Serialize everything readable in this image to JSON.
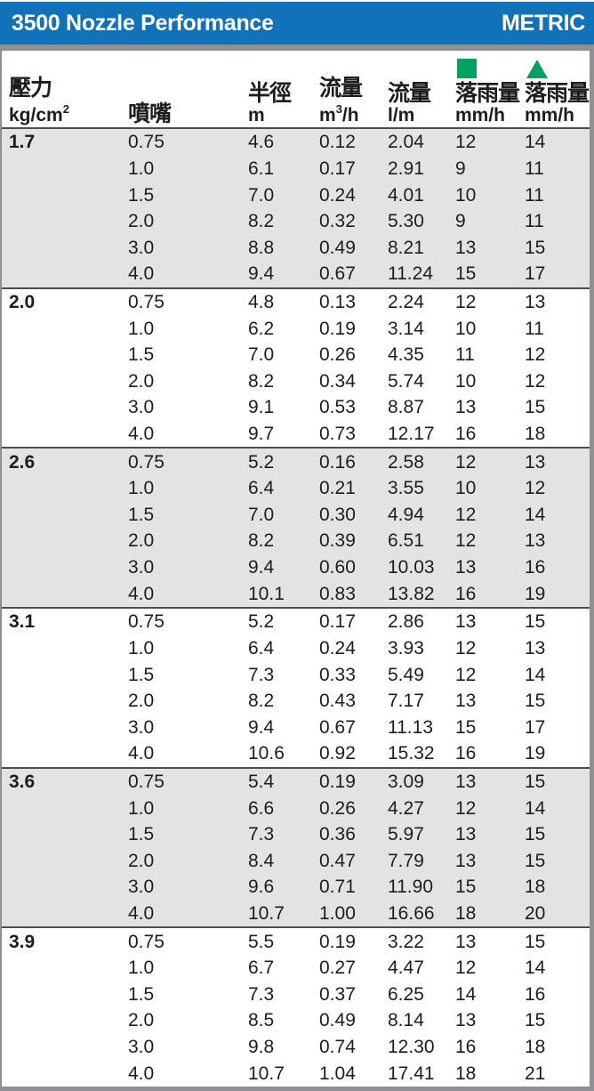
{
  "titlebar": {
    "title": "3500 Nozzle Performance",
    "tag": "METRIC"
  },
  "colors": {
    "header_blue": "#1272b9",
    "frame_gray": "#8e9094",
    "group_band_gray": "#e3e3e3",
    "group_separator": "#4d4e50",
    "icon_green": "#00a25f",
    "text": "#1d1d1f"
  },
  "table": {
    "columns": [
      {
        "id": "pressure",
        "label": "壓力",
        "unit_pre": "kg/cm",
        "unit_sup": "2",
        "unit_post": "",
        "icon": ""
      },
      {
        "id": "nozzle",
        "label": "噴嘴",
        "unit_pre": "",
        "unit_sup": "",
        "unit_post": "",
        "icon": ""
      },
      {
        "id": "radius",
        "label": "半徑",
        "unit_pre": "m",
        "unit_sup": "",
        "unit_post": "",
        "icon": ""
      },
      {
        "id": "flow-m3h",
        "label": "流量",
        "unit_pre": "m",
        "unit_sup": "3",
        "unit_post": "/h",
        "icon": ""
      },
      {
        "id": "flow-lm",
        "label": "流量",
        "unit_pre": "l/m",
        "unit_sup": "",
        "unit_post": "",
        "icon": ""
      },
      {
        "id": "precip-square",
        "label": "落雨量",
        "unit_pre": "mm/h",
        "unit_sup": "",
        "unit_post": "",
        "icon": "square"
      },
      {
        "id": "precip-triangle",
        "label": "落雨量",
        "unit_pre": "mm/h",
        "unit_sup": "",
        "unit_post": "",
        "icon": "triangle"
      }
    ],
    "groups": [
      {
        "pressure": "1.7",
        "shaded": true,
        "rows": [
          [
            "0.75",
            "4.6",
            "0.12",
            "2.04",
            "12",
            "14"
          ],
          [
            "1.0",
            "6.1",
            "0.17",
            "2.91",
            "9",
            "11"
          ],
          [
            "1.5",
            "7.0",
            "0.24",
            "4.01",
            "10",
            "11"
          ],
          [
            "2.0",
            "8.2",
            "0.32",
            "5.30",
            "9",
            "11"
          ],
          [
            "3.0",
            "8.8",
            "0.49",
            "8.21",
            "13",
            "15"
          ],
          [
            "4.0",
            "9.4",
            "0.67",
            "11.24",
            "15",
            "17"
          ]
        ]
      },
      {
        "pressure": "2.0",
        "shaded": false,
        "rows": [
          [
            "0.75",
            "4.8",
            "0.13",
            "2.24",
            "12",
            "13"
          ],
          [
            "1.0",
            "6.2",
            "0.19",
            "3.14",
            "10",
            "11"
          ],
          [
            "1.5",
            "7.0",
            "0.26",
            "4.35",
            "11",
            "12"
          ],
          [
            "2.0",
            "8.2",
            "0.34",
            "5.74",
            "10",
            "12"
          ],
          [
            "3.0",
            "9.1",
            "0.53",
            "8.87",
            "13",
            "15"
          ],
          [
            "4.0",
            "9.7",
            "0.73",
            "12.17",
            "16",
            "18"
          ]
        ]
      },
      {
        "pressure": "2.6",
        "shaded": true,
        "rows": [
          [
            "0.75",
            "5.2",
            "0.16",
            "2.58",
            "12",
            "13"
          ],
          [
            "1.0",
            "6.4",
            "0.21",
            "3.55",
            "10",
            "12"
          ],
          [
            "1.5",
            "7.0",
            "0.30",
            "4.94",
            "12",
            "14"
          ],
          [
            "2.0",
            "8.2",
            "0.39",
            "6.51",
            "12",
            "13"
          ],
          [
            "3.0",
            "9.4",
            "0.60",
            "10.03",
            "13",
            "16"
          ],
          [
            "4.0",
            "10.1",
            "0.83",
            "13.82",
            "16",
            "19"
          ]
        ]
      },
      {
        "pressure": "3.1",
        "shaded": false,
        "rows": [
          [
            "0.75",
            "5.2",
            "0.17",
            "2.86",
            "13",
            "15"
          ],
          [
            "1.0",
            "6.4",
            "0.24",
            "3.93",
            "12",
            "13"
          ],
          [
            "1.5",
            "7.3",
            "0.33",
            "5.49",
            "12",
            "14"
          ],
          [
            "2.0",
            "8.2",
            "0.43",
            "7.17",
            "13",
            "15"
          ],
          [
            "3.0",
            "9.4",
            "0.67",
            "11.13",
            "15",
            "17"
          ],
          [
            "4.0",
            "10.6",
            "0.92",
            "15.32",
            "16",
            "19"
          ]
        ]
      },
      {
        "pressure": "3.6",
        "shaded": true,
        "rows": [
          [
            "0.75",
            "5.4",
            "0.19",
            "3.09",
            "13",
            "15"
          ],
          [
            "1.0",
            "6.6",
            "0.26",
            "4.27",
            "12",
            "14"
          ],
          [
            "1.5",
            "7.3",
            "0.36",
            "5.97",
            "13",
            "15"
          ],
          [
            "2.0",
            "8.4",
            "0.47",
            "7.79",
            "13",
            "15"
          ],
          [
            "3.0",
            "9.6",
            "0.71",
            "11.90",
            "15",
            "18"
          ],
          [
            "4.0",
            "10.7",
            "1.00",
            "16.66",
            "18",
            "20"
          ]
        ]
      },
      {
        "pressure": "3.9",
        "shaded": false,
        "rows": [
          [
            "0.75",
            "5.5",
            "0.19",
            "3.22",
            "13",
            "15"
          ],
          [
            "1.0",
            "6.7",
            "0.27",
            "4.47",
            "12",
            "14"
          ],
          [
            "1.5",
            "7.3",
            "0.37",
            "6.25",
            "14",
            "16"
          ],
          [
            "2.0",
            "8.5",
            "0.49",
            "8.14",
            "13",
            "15"
          ],
          [
            "3.0",
            "9.8",
            "0.74",
            "12.30",
            "16",
            "18"
          ],
          [
            "4.0",
            "10.7",
            "1.04",
            "17.41",
            "18",
            "21"
          ]
        ]
      }
    ]
  }
}
